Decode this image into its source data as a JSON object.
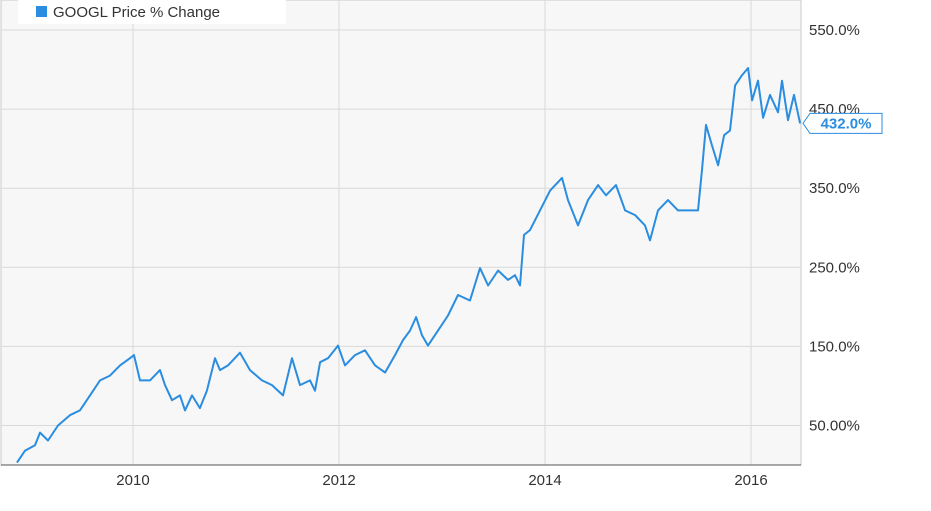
{
  "chart_data": {
    "type": "line",
    "xlim": [
      2008.874,
      2016.485
    ],
    "xticks": [
      2010,
      2012,
      2014,
      2016
    ],
    "ylim": [
      0,
      588
    ],
    "yticks": [
      {
        "value": 50,
        "label": "50.00%"
      },
      {
        "value": 150,
        "label": "150.0%"
      },
      {
        "value": 250,
        "label": "250.0%"
      },
      {
        "value": 350,
        "label": "350.0%"
      },
      {
        "value": 450,
        "label": "450.0%"
      },
      {
        "value": 550,
        "label": "550.0%"
      }
    ],
    "grid": true,
    "legend": "top-left",
    "series": [
      {
        "name": "GOOGL Price % Change",
        "color": "#2a8de0",
        "end_label": {
          "value": 432,
          "label": "432.0%"
        },
        "x": [
          2008.874,
          2008.951,
          2009.049,
          2009.097,
          2009.175,
          2009.272,
          2009.388,
          2009.485,
          2009.583,
          2009.68,
          2009.777,
          2009.874,
          2009.971,
          2010.01,
          2010.068,
          2010.165,
          2010.262,
          2010.311,
          2010.379,
          2010.456,
          2010.505,
          2010.573,
          2010.65,
          2010.718,
          2010.796,
          2010.845,
          2010.922,
          2011.039,
          2011.136,
          2011.252,
          2011.35,
          2011.456,
          2011.544,
          2011.621,
          2011.718,
          2011.767,
          2011.816,
          2011.893,
          2011.99,
          2012.058,
          2012.155,
          2012.252,
          2012.35,
          2012.447,
          2012.544,
          2012.621,
          2012.689,
          2012.748,
          2012.806,
          2012.864,
          2012.961,
          2013.058,
          2013.155,
          2013.272,
          2013.369,
          2013.447,
          2013.544,
          2013.641,
          2013.709,
          2013.757,
          2013.796,
          2013.854,
          2013.951,
          2014.049,
          2014.165,
          2014.223,
          2014.32,
          2014.417,
          2014.515,
          2014.592,
          2014.689,
          2014.777,
          2014.874,
          2014.971,
          2015.019,
          2015.097,
          2015.194,
          2015.291,
          2015.388,
          2015.485,
          2015.524,
          2015.563,
          2015.621,
          2015.68,
          2015.738,
          2015.796,
          2015.845,
          2015.913,
          2015.971,
          2016.01,
          2016.068,
          2016.117,
          2016.184,
          2016.262,
          2016.301,
          2016.359,
          2016.417,
          2016.476
        ],
        "values": [
          3,
          18,
          25,
          41,
          31,
          50,
          63,
          69,
          88,
          107,
          113,
          126,
          135,
          139,
          107,
          107,
          120,
          101,
          82,
          88,
          69,
          88,
          72,
          94,
          135,
          120,
          126,
          142,
          120,
          107,
          101,
          88,
          135,
          101,
          107,
          94,
          130,
          135,
          151,
          126,
          139,
          145,
          126,
          117,
          139,
          158,
          170,
          187,
          164,
          151,
          170,
          189,
          215,
          208,
          249,
          227,
          246,
          234,
          240,
          227,
          291,
          297,
          322,
          347,
          363,
          335,
          303,
          335,
          354,
          341,
          354,
          322,
          316,
          303,
          284,
          322,
          335,
          322,
          322,
          322,
          373,
          430,
          404,
          379,
          417,
          423,
          480,
          493,
          502,
          461,
          486,
          439,
          468,
          446,
          486,
          436,
          468,
          432
        ]
      }
    ]
  }
}
